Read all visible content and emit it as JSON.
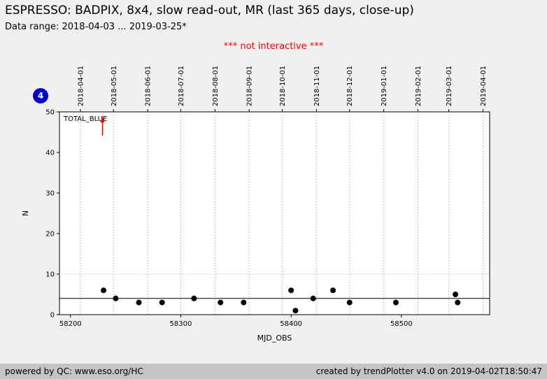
{
  "header": {
    "title": "ESPRESSO: BADPIX, 8x4, slow read-out, MR (last 365 days, close-up)",
    "subtitle": "Data range: 2018-04-03 ... 2019-03-25*",
    "notice": "*** not interactive ***",
    "badge": "4",
    "badge_color": "#0000cd"
  },
  "chart_data": {
    "type": "scatter",
    "series_label": "TOTAL_BLUE",
    "xlabel": "MJD_OBS",
    "ylabel": "N",
    "xlim": [
      58190,
      58580
    ],
    "ylim": [
      0,
      50
    ],
    "x_ticks": [
      58200,
      58300,
      58400,
      58500
    ],
    "y_ticks": [
      0,
      10,
      20,
      30,
      40,
      50
    ],
    "top_axis": [
      {
        "label": "2018-04-01",
        "mjd": 58209
      },
      {
        "label": "2018-05-01",
        "mjd": 58239
      },
      {
        "label": "2018-06-01",
        "mjd": 58270
      },
      {
        "label": "2018-07-01",
        "mjd": 58300
      },
      {
        "label": "2018-08-01",
        "mjd": 58331
      },
      {
        "label": "2018-09-01",
        "mjd": 58362
      },
      {
        "label": "2018-10-01",
        "mjd": 58392
      },
      {
        "label": "2018-11-01",
        "mjd": 58423
      },
      {
        "label": "2018-12-01",
        "mjd": 58453
      },
      {
        "label": "2019-01-01",
        "mjd": 58484
      },
      {
        "label": "2019-02-01",
        "mjd": 58515
      },
      {
        "label": "2019-03-01",
        "mjd": 58543
      },
      {
        "label": "2019-04-01",
        "mjd": 58574
      }
    ],
    "points": [
      [
        58230,
        6
      ],
      [
        58241,
        4
      ],
      [
        58262,
        3
      ],
      [
        58283,
        3
      ],
      [
        58312,
        4
      ],
      [
        58336,
        3
      ],
      [
        58357,
        3
      ],
      [
        58400,
        6
      ],
      [
        58404,
        1
      ],
      [
        58420,
        4
      ],
      [
        58438,
        6
      ],
      [
        58453,
        3
      ],
      [
        58495,
        3
      ],
      [
        58549,
        5
      ],
      [
        58551,
        3
      ]
    ],
    "hline_solid": 4,
    "hline_dotted": 10,
    "arrow_x": 58229,
    "marker_color": "#000000",
    "grid_color": "#999999",
    "arrow_color": "#ff0000",
    "legend_position": "top-left-inside",
    "grid": "vertical-dotted-months"
  },
  "footer": {
    "left": "powered by QC: www.eso.org/HC",
    "right": "created by trendPlotter v4.0 on 2019-04-02T18:50:47"
  }
}
